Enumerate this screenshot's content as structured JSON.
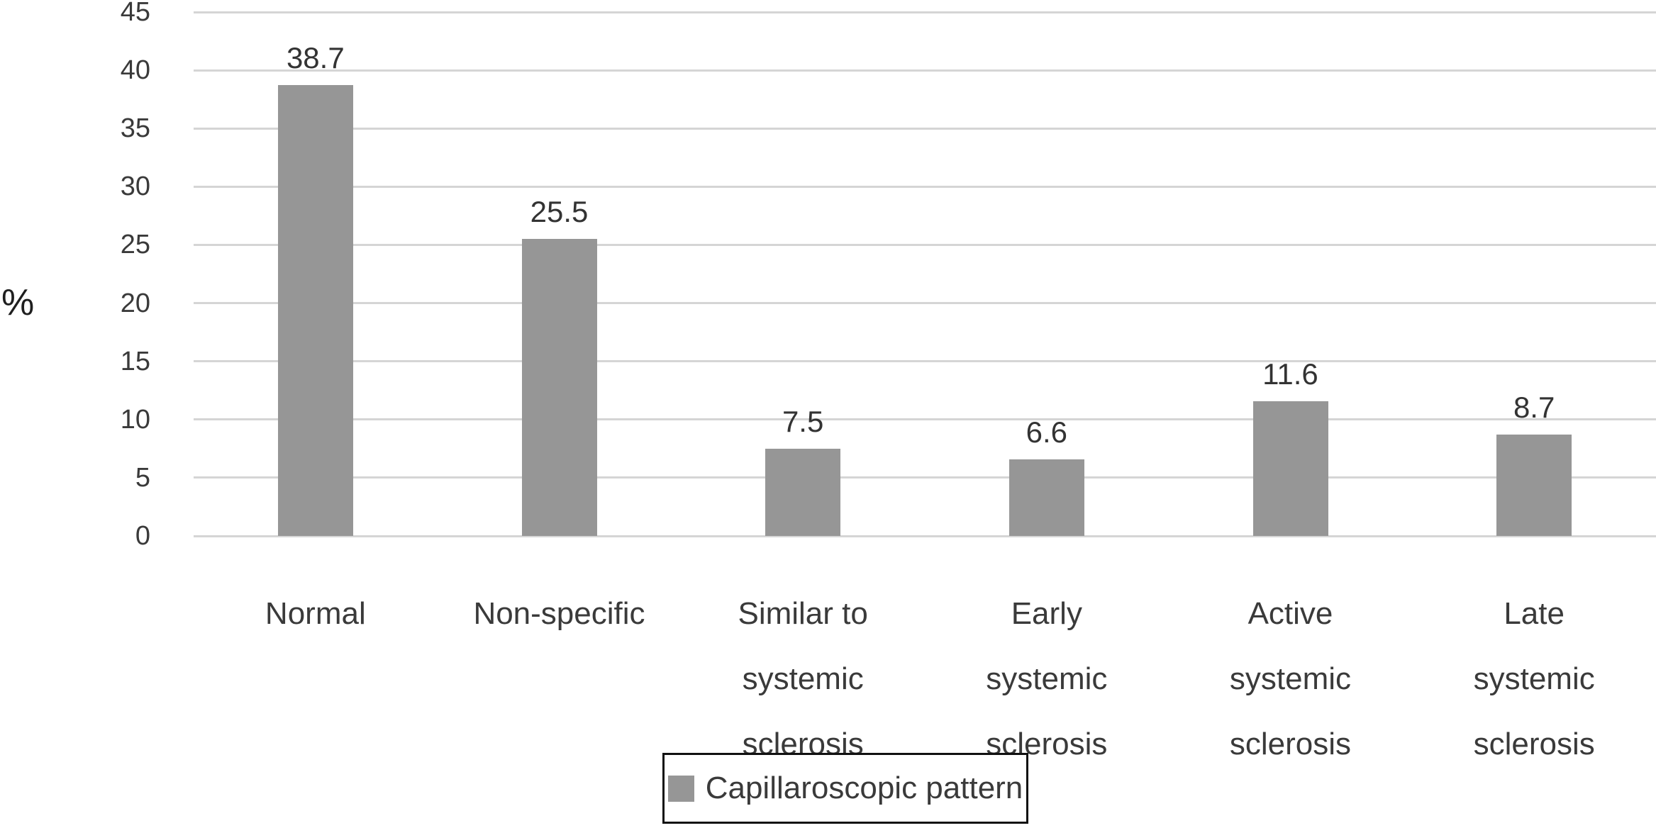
{
  "chart_data": {
    "type": "bar",
    "title": "",
    "xlabel": "",
    "ylabel": "%",
    "categories": [
      "Normal",
      "Non-specific",
      "Similar to\nsystemic\nsclerosis",
      "Early\nsystemic\nsclerosis",
      "Active\nsystemic\nsclerosis",
      "Late\nsystemic\nsclerosis"
    ],
    "values": [
      38.7,
      25.5,
      7.5,
      6.6,
      11.6,
      8.7
    ],
    "data_labels": [
      "38.7",
      "25.5",
      "7.5",
      "6.6",
      "11.6",
      "8.7"
    ],
    "ylim": [
      0,
      45
    ],
    "yticks": [
      45,
      40,
      35,
      30,
      25,
      20,
      15,
      10,
      5,
      0
    ],
    "grid": "horizontal-only",
    "legend": {
      "label": "Capillaroscopic pattern",
      "position": "bottom-center",
      "boxed": true
    },
    "colors": {
      "bar": "#969696",
      "gridline": "#d5d5d5",
      "tick_text": "#3a3a3a",
      "label_text": "#3a3a3a",
      "value_text": "#333333",
      "ylabel_text": "#1f1f1f",
      "legend_border": "#111111",
      "background": "#ffffff"
    }
  }
}
